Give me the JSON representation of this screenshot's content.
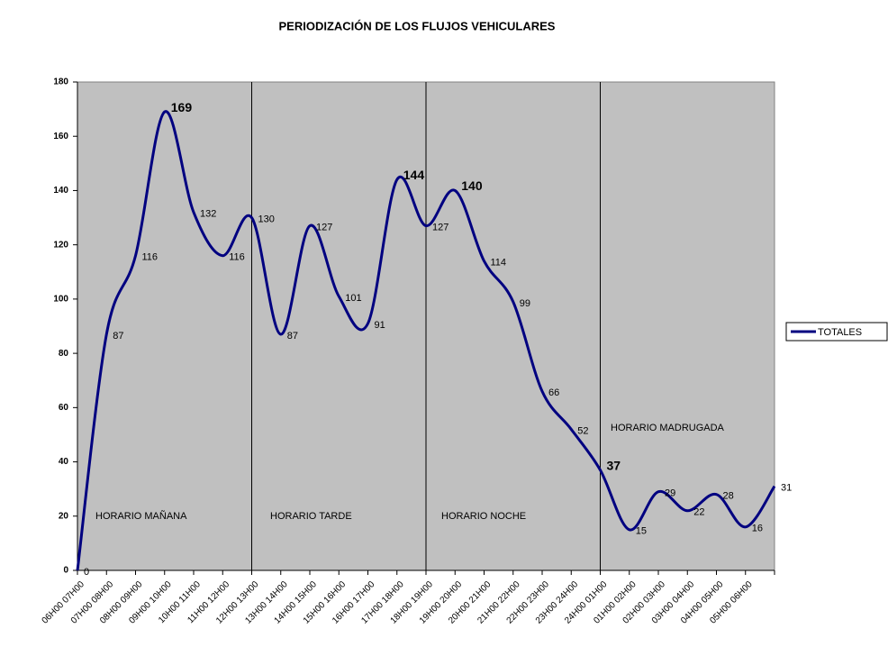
{
  "chart_data": {
    "type": "line",
    "title": "PERIODIZACIÓN DE LOS FLUJOS VEHICULARES",
    "categories": [
      "06H00 07H00",
      "07H00 08H00",
      "08H00 09H00",
      "09H00 10H00",
      "10H00 11H00",
      "11H00 12H00",
      "12H00 13H00",
      "13H00 14H00",
      "14H00 15H00",
      "15H00 16H00",
      "16H00 17H00",
      "17H00 18H00",
      "18H00 19H00",
      "19H00 20H00",
      "20H00 21H00",
      "21H00 22H00",
      "22H00 23H00",
      "23H00 24H00",
      "24H00 01H00",
      "01H00 02H00",
      "02H00 03H00",
      "03H00 04H00",
      "04H00 05H00",
      "05H00 06H00",
      null
    ],
    "series": [
      {
        "name": "TOTALES",
        "color": "#000080",
        "values": [
          0,
          87,
          116,
          169,
          132,
          116,
          130,
          87,
          127,
          101,
          91,
          144,
          127,
          140,
          114,
          99,
          66,
          52,
          37,
          15,
          29,
          22,
          28,
          16,
          31
        ]
      }
    ],
    "ylim": [
      0,
      180
    ],
    "yticks": [
      0,
      20,
      40,
      60,
      80,
      100,
      120,
      140,
      160,
      180
    ],
    "annotations": [
      "HORARIO MAÑANA",
      "HORARIO TARDE",
      "HORARIO NOCHE",
      "HORARIO MADRUGADA"
    ],
    "plot_background": "#c0c0c0"
  }
}
